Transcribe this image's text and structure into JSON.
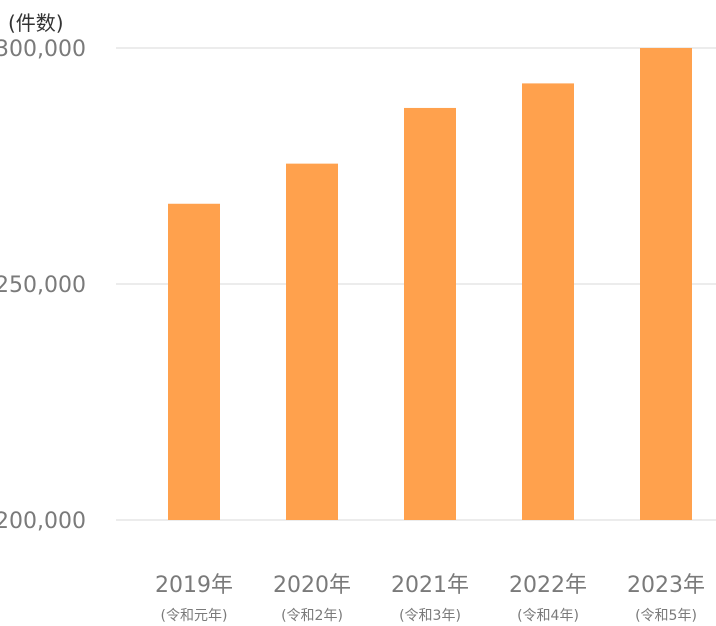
{
  "chart_data": {
    "type": "bar",
    "ylabel": "(件数)",
    "categories": [
      "2019年",
      "2020年",
      "2021年",
      "2022年",
      "2023年"
    ],
    "category_sublabels": [
      "(令和元年)",
      "(令和2年)",
      "(令和3年)",
      "(令和4年)",
      "(令和5年)"
    ],
    "values": [
      267000,
      275500,
      287300,
      292500,
      300000
    ],
    "ylim": [
      200000,
      300000
    ],
    "yticks": [
      {
        "value": 200000,
        "label": "200,000"
      },
      {
        "value": 250000,
        "label": "250,000"
      },
      {
        "value": 300000,
        "label": "300,000"
      }
    ],
    "grid": true,
    "bar_color": "#ffa14d"
  }
}
